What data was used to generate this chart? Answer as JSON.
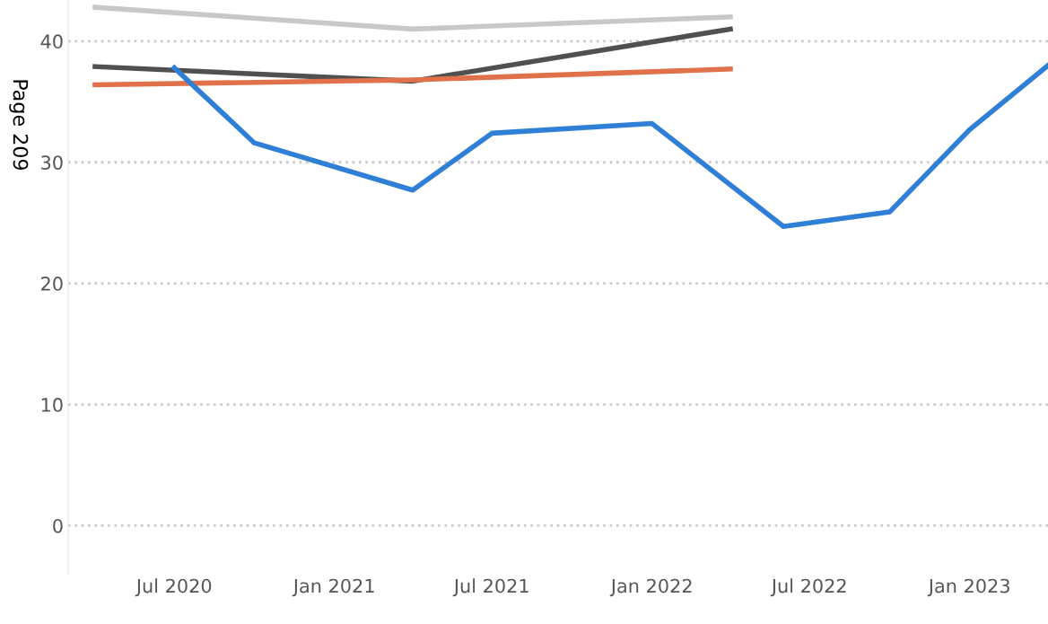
{
  "chart_data": {
    "type": "line",
    "series": [
      {
        "color": "#c8c8c8",
        "x": [
          "2020-04",
          "2021-04",
          "2022-04"
        ],
        "values": [
          42.8,
          41,
          42
        ]
      },
      {
        "color": "#505050",
        "x": [
          "2020-04",
          "2021-04",
          "2022-04"
        ],
        "values": [
          37.9,
          36.7,
          41
        ]
      },
      {
        "color": "#e0714a",
        "x": [
          "2020-04",
          "2021-04",
          "2022-04"
        ],
        "values": [
          36.4,
          36.8,
          37.7
        ]
      },
      {
        "color": "#2f7fd6",
        "x": [
          "2020-07",
          "2020-10",
          "2021-04",
          "2021-07",
          "2022-01",
          "2022-06",
          "2022-10",
          "2023-01",
          "2023-04"
        ],
        "values": [
          37.8,
          31.6,
          27.7,
          32.4,
          33.2,
          24.7,
          25.9,
          32.7,
          38.0
        ]
      }
    ],
    "xlim": [
      "2020-03",
      "2023-04"
    ],
    "xticks": [
      {
        "value": "2020-07",
        "label": "Jul 2020"
      },
      {
        "value": "2021-01",
        "label": "Jan 2021"
      },
      {
        "value": "2021-07",
        "label": "Jul 2021"
      },
      {
        "value": "2022-01",
        "label": "Jan 2022"
      },
      {
        "value": "2022-07",
        "label": "Jul 2022"
      },
      {
        "value": "2023-01",
        "label": "Jan 2023"
      }
    ],
    "ylim": [
      -4,
      43.4
    ],
    "yticks": [
      0,
      10,
      20,
      30,
      40
    ],
    "grid": "y",
    "marker": "none",
    "line_style": "solid",
    "annotations": [
      "Page 209"
    ]
  }
}
